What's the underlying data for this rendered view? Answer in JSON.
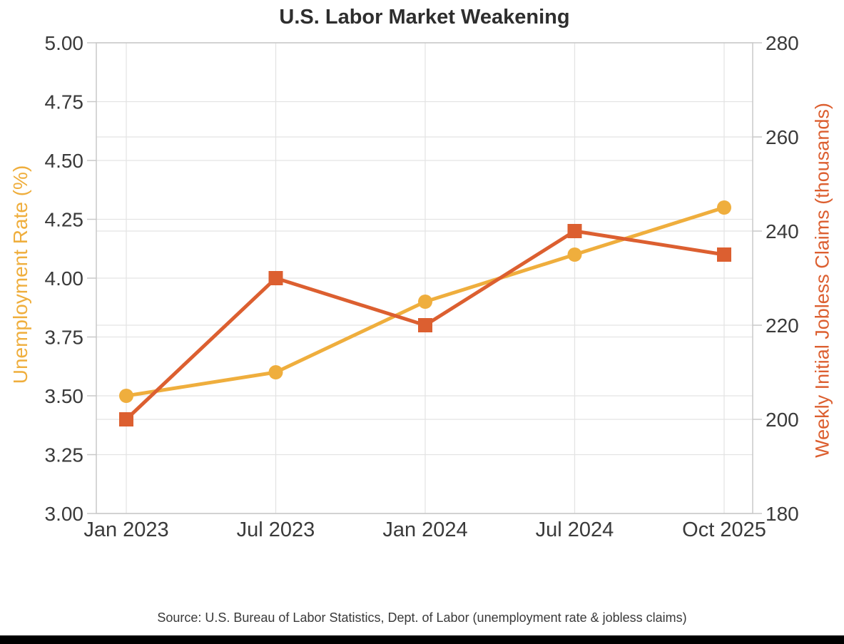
{
  "source": "Source: U.S. Bureau of Labor Statistics, Dept. of Labor (unemployment rate & jobless claims)",
  "colors": {
    "unemployment": "#EFAE3D",
    "claims": "#DC5F30",
    "tick_label": "#3A3A3A",
    "grid": "#E4E4E4",
    "border": "#C8C8C8",
    "title": "#2E2E2E",
    "source_text": "#3A3A3A",
    "bottom_bar": "#000000",
    "background": "#FFFFFF"
  },
  "chart_data": {
    "type": "line",
    "title": "U.S. Labor Market Weakening",
    "categories": [
      "Jan 2023",
      "Jul 2023",
      "Jan 2024",
      "Jul 2024",
      "Oct 2025"
    ],
    "series": [
      {
        "name": "Unemployment Rate (%)",
        "axis": "left",
        "marker": "circle",
        "color": "#EFAE3D",
        "values": [
          3.5,
          3.6,
          3.9,
          4.1,
          4.3
        ]
      },
      {
        "name": "Weekly Initial Jobless Claims (thousands)",
        "axis": "right",
        "marker": "square",
        "color": "#DC5F30",
        "values": [
          200,
          230,
          220,
          240,
          235
        ]
      }
    ],
    "ylabel_left": "Unemployment Rate (%)",
    "ylabel_right": "Weekly Initial Jobless Claims (thousands)",
    "y_left": {
      "min": 3.0,
      "max": 5.0,
      "tick_labels": [
        "3.00",
        "3.25",
        "3.50",
        "3.75",
        "4.00",
        "4.25",
        "4.50",
        "4.75",
        "5.00"
      ]
    },
    "y_right": {
      "min": 180,
      "max": 280,
      "tick_labels": [
        "180",
        "200",
        "220",
        "240",
        "260",
        "280"
      ]
    },
    "grid": true,
    "legend": "none"
  }
}
